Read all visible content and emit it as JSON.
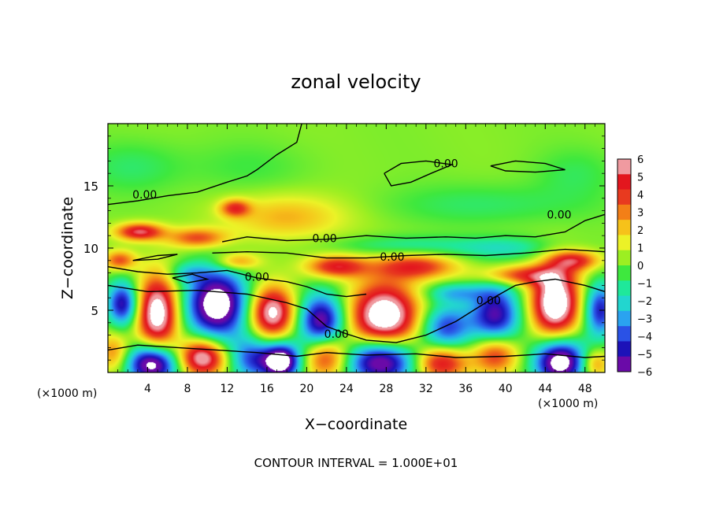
{
  "chart_data": {
    "type": "heatmap",
    "title": "zonal velocity",
    "xlabel": "X−coordinate",
    "ylabel": "Z−coordinate",
    "x_unit_left": "(×1000 m)",
    "x_unit_right": "(×1000 m)",
    "footer": "CONTOUR INTERVAL = 1.000E+01",
    "xlim": [
      0,
      50
    ],
    "ylim": [
      0,
      20
    ],
    "x_ticks": [
      4,
      8,
      12,
      16,
      20,
      24,
      28,
      32,
      36,
      40,
      44,
      48
    ],
    "x_tick_labels": [
      "4",
      "8",
      "12",
      "16",
      "20",
      "24",
      "28",
      "32",
      "36",
      "40",
      "44",
      "48"
    ],
    "y_ticks": [
      5,
      10,
      15
    ],
    "y_tick_labels": [
      "5",
      "10",
      "15"
    ],
    "colorbar": {
      "min": -6,
      "max": 6,
      "tick_labels": [
        "6",
        "5",
        "4",
        "3",
        "2",
        "1",
        "0",
        "−1",
        "−2",
        "−3",
        "−4",
        "−5",
        "−6"
      ],
      "colors": [
        "#6a0aa8",
        "#1c12b8",
        "#2a52e6",
        "#2aa3f0",
        "#22d6cf",
        "#1fe89a",
        "#3ee83e",
        "#9cef22",
        "#ecf227",
        "#f6c21a",
        "#f37f17",
        "#e83a1f",
        "#e3161e",
        "#f09aa0"
      ]
    },
    "contour_label": "0.00",
    "contour_labels": [
      {
        "text": "0.00",
        "x": 3.7,
        "z": 14.3
      },
      {
        "text": "0.00",
        "x": 21.8,
        "z": 10.8
      },
      {
        "text": "0.00",
        "x": 28.6,
        "z": 9.3
      },
      {
        "text": "0.00",
        "x": 15.0,
        "z": 7.7
      },
      {
        "text": "0.00",
        "x": 23.0,
        "z": 3.1
      },
      {
        "text": "0.00",
        "x": 38.3,
        "z": 5.8
      },
      {
        "text": "0.00",
        "x": 34.0,
        "z": 16.8
      },
      {
        "text": "0.00",
        "x": 45.4,
        "z": 12.7
      }
    ],
    "features": [
      {
        "x": 1.5,
        "z": 5.5,
        "v": -5.5,
        "rx": 1.6,
        "rz": 1.8
      },
      {
        "x": 5.0,
        "z": 4.8,
        "v": 7.0,
        "rx": 2.1,
        "rz": 3.0
      },
      {
        "x": 11.0,
        "z": 5.5,
        "v": -7.5,
        "rx": 3.2,
        "rz": 2.8
      },
      {
        "x": 16.5,
        "z": 4.8,
        "v": 6.5,
        "rx": 2.3,
        "rz": 2.1
      },
      {
        "x": 21.5,
        "z": 4.0,
        "v": -6.5,
        "rx": 2.4,
        "rz": 2.3
      },
      {
        "x": 27.8,
        "z": 4.4,
        "v": 7.5,
        "rx": 3.5,
        "rz": 2.8
      },
      {
        "x": 34.0,
        "z": 3.6,
        "v": -4.5,
        "rx": 2.6,
        "rz": 1.9
      },
      {
        "x": 39.0,
        "z": 4.6,
        "v": -5.5,
        "rx": 2.5,
        "rz": 2.5
      },
      {
        "x": 45.0,
        "z": 5.6,
        "v": 7.5,
        "rx": 2.4,
        "rz": 2.8
      },
      {
        "x": 49.5,
        "z": 5.0,
        "v": -5.0,
        "rx": 1.6,
        "rz": 2.2
      },
      {
        "x": 0.6,
        "z": 1.6,
        "v": 2.8,
        "rx": 1.6,
        "rz": 1.6
      },
      {
        "x": 4.5,
        "z": 0.7,
        "v": -7.5,
        "rx": 2.6,
        "rz": 1.6
      },
      {
        "x": 9.5,
        "z": 1.2,
        "v": 6.5,
        "rx": 2.4,
        "rz": 1.5
      },
      {
        "x": 14.5,
        "z": 1.1,
        "v": -4.0,
        "rx": 2.3,
        "rz": 1.8
      },
      {
        "x": 17.5,
        "z": 0.9,
        "v": -7.5,
        "rx": 1.9,
        "rz": 1.5
      },
      {
        "x": 22.0,
        "z": 1.4,
        "v": 5.0,
        "rx": 2.3,
        "rz": 1.8
      },
      {
        "x": 27.5,
        "z": 1.0,
        "v": -7.5,
        "rx": 3.6,
        "rz": 1.9
      },
      {
        "x": 33.5,
        "z": 0.8,
        "v": 5.0,
        "rx": 2.6,
        "rz": 1.4
      },
      {
        "x": 39.0,
        "z": 1.5,
        "v": 4.5,
        "rx": 2.3,
        "rz": 1.6
      },
      {
        "x": 45.5,
        "z": 0.9,
        "v": -7.5,
        "rx": 2.6,
        "rz": 1.9
      },
      {
        "x": 49.0,
        "z": 0.7,
        "v": 3.0,
        "rx": 1.4,
        "rz": 1.2
      },
      {
        "x": 3.2,
        "z": 11.3,
        "v": 5.0,
        "rx": 2.4,
        "rz": 0.7
      },
      {
        "x": 9.0,
        "z": 10.8,
        "v": 3.5,
        "rx": 3.0,
        "rz": 0.8
      },
      {
        "x": 12.8,
        "z": 13.2,
        "v": 3.5,
        "rx": 1.5,
        "rz": 0.7
      },
      {
        "x": 18.0,
        "z": 12.5,
        "v": 2.2,
        "rx": 6.0,
        "rz": 1.8
      },
      {
        "x": 23.0,
        "z": 8.5,
        "v": 4.5,
        "rx": 3.0,
        "rz": 0.9
      },
      {
        "x": 31.0,
        "z": 8.5,
        "v": 4.0,
        "rx": 4.0,
        "rz": 1.0
      },
      {
        "x": 13.0,
        "z": 8.9,
        "v": 3.0,
        "rx": 2.2,
        "rz": 0.7
      },
      {
        "x": 41.5,
        "z": 7.8,
        "v": 3.8,
        "rx": 4.0,
        "rz": 0.8
      },
      {
        "x": 47.0,
        "z": 9.0,
        "v": 4.0,
        "rx": 2.5,
        "rz": 0.8
      },
      {
        "x": 1.2,
        "z": 9.0,
        "v": 3.5,
        "rx": 1.6,
        "rz": 0.8
      },
      {
        "x": 8.0,
        "z": 8.0,
        "v": -1.8,
        "rx": 2.0,
        "rz": 0.8
      },
      {
        "x": 30.0,
        "z": 10.2,
        "v": -1.5,
        "rx": 7.0,
        "rz": 0.8
      },
      {
        "x": 40.0,
        "z": 10.0,
        "v": -1.8,
        "rx": 5.0,
        "rz": 0.9
      },
      {
        "x": 35.0,
        "z": 6.4,
        "v": -2.5,
        "rx": 3.0,
        "rz": 0.8
      },
      {
        "x": 2.5,
        "z": 16.5,
        "v": -1.0,
        "rx": 5.0,
        "rz": 2.0
      },
      {
        "x": 14.0,
        "z": 16.5,
        "v": -0.6,
        "rx": 6.0,
        "rz": 2.0
      },
      {
        "x": 38.0,
        "z": 13.5,
        "v": -1.0,
        "rx": 10.0,
        "rz": 1.6
      },
      {
        "x": 47.0,
        "z": 16.0,
        "v": -0.8,
        "rx": 4.0,
        "rz": 2.0
      }
    ],
    "zero_contours": [
      [
        [
          0,
          13.5
        ],
        [
          3,
          13.8
        ],
        [
          6,
          14.2
        ],
        [
          9,
          14.5
        ],
        [
          12,
          15.3
        ],
        [
          14,
          15.8
        ],
        [
          15,
          16.3
        ],
        [
          17,
          17.5
        ],
        [
          19,
          18.5
        ],
        [
          19.5,
          20
        ]
      ],
      [
        [
          11.5,
          10.5
        ],
        [
          14,
          10.9
        ],
        [
          18,
          10.6
        ],
        [
          22,
          10.7
        ],
        [
          26,
          11.0
        ],
        [
          30,
          10.8
        ],
        [
          34,
          10.9
        ],
        [
          37,
          10.8
        ],
        [
          40,
          11.0
        ],
        [
          43,
          10.9
        ],
        [
          46,
          11.3
        ],
        [
          48,
          12.2
        ],
        [
          50,
          12.7
        ]
      ],
      [
        [
          10.5,
          9.6
        ],
        [
          14,
          9.7
        ],
        [
          18,
          9.6
        ],
        [
          22,
          9.2
        ],
        [
          26,
          9.2
        ],
        [
          30,
          9.4
        ],
        [
          34,
          9.5
        ],
        [
          38,
          9.4
        ],
        [
          42,
          9.6
        ],
        [
          46,
          9.9
        ],
        [
          50,
          9.7
        ]
      ],
      [
        [
          0,
          8.5
        ],
        [
          3,
          8.1
        ],
        [
          6,
          7.9
        ],
        [
          9,
          8.0
        ],
        [
          12,
          8.2
        ],
        [
          15,
          7.6
        ],
        [
          18,
          7.3
        ],
        [
          20,
          6.9
        ],
        [
          22,
          6.3
        ],
        [
          24,
          6.1
        ],
        [
          26,
          6.3
        ]
      ],
      [
        [
          0,
          7.0
        ],
        [
          4,
          6.5
        ],
        [
          9,
          6.6
        ],
        [
          14,
          6.3
        ],
        [
          18,
          5.6
        ],
        [
          20,
          5.1
        ],
        [
          21,
          4.4
        ],
        [
          22,
          3.7
        ],
        [
          24,
          3.1
        ],
        [
          26,
          2.6
        ],
        [
          29,
          2.4
        ],
        [
          32,
          3.0
        ],
        [
          35,
          4.1
        ],
        [
          37,
          5.1
        ],
        [
          39,
          6.1
        ],
        [
          41,
          7.0
        ],
        [
          43,
          7.3
        ],
        [
          45,
          7.5
        ],
        [
          48,
          7.0
        ],
        [
          50,
          6.5
        ]
      ],
      [
        [
          0,
          1.8
        ],
        [
          3,
          2.2
        ],
        [
          7,
          2.0
        ],
        [
          11,
          1.8
        ],
        [
          15,
          1.6
        ],
        [
          19,
          1.3
        ],
        [
          22,
          1.6
        ],
        [
          26,
          1.4
        ],
        [
          31,
          1.5
        ],
        [
          35,
          1.2
        ],
        [
          40,
          1.3
        ],
        [
          44,
          1.5
        ],
        [
          48,
          1.2
        ],
        [
          50,
          1.3
        ]
      ],
      [
        [
          27.8,
          16.0
        ],
        [
          29.5,
          16.8
        ],
        [
          32,
          17.0
        ],
        [
          34.6,
          16.7
        ],
        [
          32.5,
          16.0
        ],
        [
          30.5,
          15.3
        ],
        [
          28.5,
          15.0
        ],
        [
          27.8,
          16.0
        ]
      ],
      [
        [
          38.5,
          16.6
        ],
        [
          41,
          17.0
        ],
        [
          44,
          16.8
        ],
        [
          46,
          16.3
        ],
        [
          43,
          16.1
        ],
        [
          40,
          16.2
        ],
        [
          38.5,
          16.6
        ]
      ],
      [
        [
          2.5,
          9.0
        ],
        [
          5,
          9.4
        ],
        [
          7,
          9.5
        ],
        [
          5,
          9.1
        ],
        [
          2.5,
          9.0
        ]
      ],
      [
        [
          6.5,
          7.6
        ],
        [
          8.5,
          7.9
        ],
        [
          10,
          7.5
        ],
        [
          8,
          7.2
        ],
        [
          6.5,
          7.6
        ]
      ]
    ]
  }
}
